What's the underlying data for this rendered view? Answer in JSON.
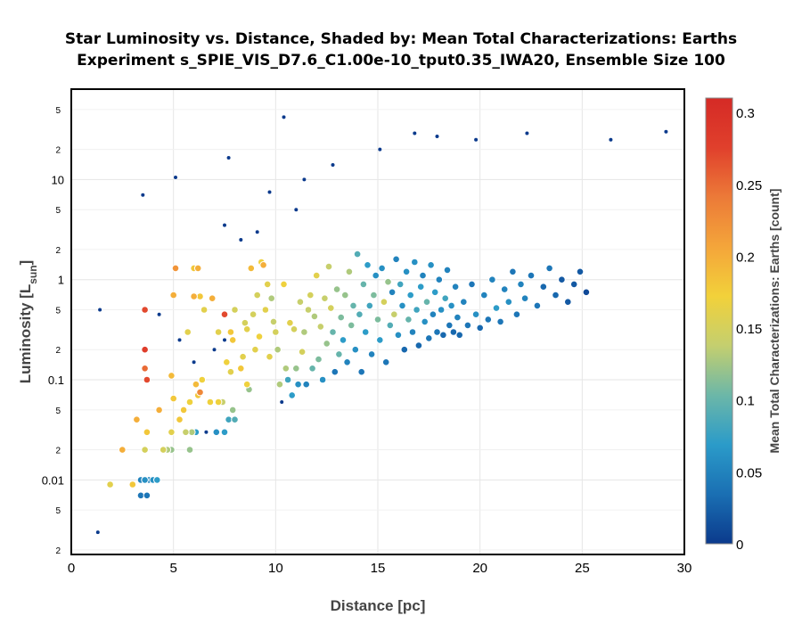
{
  "chart_data": {
    "type": "scatter",
    "title_line1": "Star Luminosity vs. Distance, Shaded by: Mean Total Characterizations: Earths",
    "title_line2": "Experiment s_SPIE_VIS_D7.6_C1.00e-10_tput0.35_IWA20, Ensemble Size 100",
    "xlabel": "Distance [pc]",
    "ylabel_main": "Luminosity [L",
    "ylabel_sub": "sun",
    "ylabel_end": "]",
    "colorbar_label": "Mean Total Characterizations: Earths [count]",
    "xlim": [
      0,
      30
    ],
    "ylim": [
      0.0018,
      80
    ],
    "yscale": "log",
    "x_ticks": [
      "0",
      "5",
      "10",
      "15",
      "20",
      "25",
      "30"
    ],
    "y_major_ticks": [
      "0.01",
      "0.1",
      "1",
      "10"
    ],
    "y_minor_ticks": [
      "2",
      "5",
      "2",
      "5",
      "2",
      "5",
      "2",
      "5",
      "2",
      "5"
    ],
    "colorbar_range": [
      0,
      0.31
    ],
    "colorbar_ticks": [
      "0",
      "0.05",
      "0.1",
      "0.15",
      "0.2",
      "0.25",
      "0.3"
    ],
    "colormap": [
      "#0b3a8c",
      "#1a6fb3",
      "#2b9bc9",
      "#6cb7a8",
      "#c4cf6f",
      "#f2d13a",
      "#f4a53a",
      "#ec7a38",
      "#e0402c",
      "#d52a26"
    ],
    "grid": true,
    "points": [
      [
        1.3,
        0.003,
        0.0
      ],
      [
        1.4,
        0.5,
        0.0
      ],
      [
        1.9,
        0.009,
        0.16
      ],
      [
        2.5,
        0.02,
        0.2
      ],
      [
        3.0,
        0.009,
        0.18
      ],
      [
        3.2,
        0.04,
        0.2
      ],
      [
        3.4,
        0.01,
        0.05
      ],
      [
        3.6,
        0.01,
        0.06
      ],
      [
        3.8,
        0.01,
        0.05
      ],
      [
        4.0,
        0.01,
        0.06
      ],
      [
        4.2,
        0.01,
        0.07
      ],
      [
        3.4,
        0.007,
        0.04
      ],
      [
        3.7,
        0.007,
        0.04
      ],
      [
        3.5,
        7.0,
        0.0
      ],
      [
        3.6,
        0.5,
        0.27
      ],
      [
        3.6,
        0.13,
        0.25
      ],
      [
        3.7,
        0.1,
        0.27
      ],
      [
        3.6,
        0.2,
        0.28
      ],
      [
        3.7,
        0.03,
        0.18
      ],
      [
        3.6,
        0.02,
        0.15
      ],
      [
        4.3,
        0.45,
        0.0
      ],
      [
        4.3,
        0.05,
        0.2
      ],
      [
        4.5,
        0.02,
        0.12
      ],
      [
        4.7,
        0.02,
        0.13
      ],
      [
        4.9,
        0.02,
        0.12
      ],
      [
        4.5,
        0.02,
        0.15
      ],
      [
        4.9,
        0.03,
        0.16
      ],
      [
        4.9,
        0.11,
        0.19
      ],
      [
        5.0,
        0.7,
        0.2
      ],
      [
        5.0,
        0.065,
        0.18
      ],
      [
        5.1,
        1.3,
        0.22
      ],
      [
        5.1,
        10.5,
        0.0
      ],
      [
        5.3,
        0.04,
        0.18
      ],
      [
        5.3,
        0.25,
        0.0
      ],
      [
        5.5,
        0.05,
        0.18
      ],
      [
        5.6,
        0.03,
        0.14
      ],
      [
        5.7,
        0.3,
        0.16
      ],
      [
        5.8,
        0.02,
        0.12
      ],
      [
        5.8,
        0.06,
        0.17
      ],
      [
        5.9,
        0.03,
        0.13
      ],
      [
        6.0,
        1.3,
        0.18
      ],
      [
        6.0,
        0.68,
        0.2
      ],
      [
        6.1,
        0.09,
        0.19
      ],
      [
        6.0,
        0.15,
        0.0
      ],
      [
        6.1,
        0.03,
        0.07
      ],
      [
        6.2,
        0.07,
        0.18
      ],
      [
        6.2,
        1.3,
        0.2
      ],
      [
        6.3,
        0.68,
        0.18
      ],
      [
        6.3,
        0.075,
        0.23
      ],
      [
        6.4,
        0.1,
        0.17
      ],
      [
        6.5,
        0.5,
        0.16
      ],
      [
        6.6,
        0.03,
        0.0
      ],
      [
        6.8,
        0.06,
        0.17
      ],
      [
        6.9,
        0.65,
        0.2
      ],
      [
        7.0,
        0.2,
        0.0
      ],
      [
        7.1,
        0.03,
        0.06
      ],
      [
        7.2,
        0.3,
        0.16
      ],
      [
        7.2,
        0.06,
        0.17
      ],
      [
        7.4,
        0.06,
        0.14
      ],
      [
        7.5,
        0.45,
        0.27
      ],
      [
        7.5,
        0.03,
        0.07
      ],
      [
        7.6,
        0.15,
        0.17
      ],
      [
        7.5,
        0.25,
        0.0
      ],
      [
        7.7,
        0.04,
        0.08
      ],
      [
        7.7,
        16.5,
        0.0
      ],
      [
        7.8,
        0.12,
        0.16
      ],
      [
        7.9,
        0.05,
        0.12
      ],
      [
        7.8,
        0.3,
        0.18
      ],
      [
        7.9,
        0.25,
        0.18
      ],
      [
        8.0,
        0.04,
        0.09
      ],
      [
        8.0,
        0.5,
        0.15
      ],
      [
        8.3,
        0.13,
        0.18
      ],
      [
        8.4,
        0.17,
        0.16
      ],
      [
        8.5,
        0.37,
        0.15
      ],
      [
        8.6,
        0.09,
        0.17
      ],
      [
        8.6,
        0.32,
        0.16
      ],
      [
        8.7,
        0.08,
        0.12
      ],
      [
        8.8,
        1.3,
        0.19
      ],
      [
        8.9,
        0.45,
        0.15
      ],
      [
        9.0,
        0.2,
        0.16
      ],
      [
        9.1,
        3.0,
        0.0
      ],
      [
        9.1,
        0.7,
        0.15
      ],
      [
        9.2,
        0.27,
        0.17
      ],
      [
        9.3,
        1.5,
        0.17
      ],
      [
        9.4,
        1.4,
        0.2
      ],
      [
        9.5,
        0.5,
        0.16
      ],
      [
        9.6,
        0.9,
        0.16
      ],
      [
        9.7,
        0.17,
        0.16
      ],
      [
        9.8,
        0.65,
        0.13
      ],
      [
        9.9,
        0.38,
        0.14
      ],
      [
        10.0,
        0.3,
        0.15
      ],
      [
        10.1,
        0.2,
        0.13
      ],
      [
        10.2,
        0.09,
        0.13
      ],
      [
        10.3,
        0.06,
        0.0
      ],
      [
        10.4,
        0.9,
        0.17
      ],
      [
        10.5,
        0.13,
        0.13
      ],
      [
        10.6,
        0.1,
        0.08
      ],
      [
        10.7,
        0.37,
        0.16
      ],
      [
        10.8,
        0.07,
        0.07
      ],
      [
        10.9,
        0.32,
        0.15
      ],
      [
        11.0,
        0.13,
        0.12
      ],
      [
        11.1,
        0.09,
        0.06
      ],
      [
        11.2,
        0.6,
        0.14
      ],
      [
        11.3,
        0.19,
        0.15
      ],
      [
        11.4,
        0.3,
        0.13
      ],
      [
        11.5,
        0.09,
        0.05
      ],
      [
        11.6,
        0.5,
        0.14
      ],
      [
        11.7,
        0.7,
        0.15
      ],
      [
        11.8,
        0.13,
        0.1
      ],
      [
        11.9,
        0.43,
        0.13
      ],
      [
        12.0,
        1.1,
        0.16
      ],
      [
        12.1,
        0.16,
        0.11
      ],
      [
        12.2,
        0.34,
        0.14
      ],
      [
        12.3,
        0.1,
        0.06
      ],
      [
        12.4,
        0.65,
        0.14
      ],
      [
        12.5,
        0.23,
        0.12
      ],
      [
        12.6,
        1.35,
        0.14
      ],
      [
        12.7,
        0.52,
        0.15
      ],
      [
        12.8,
        0.3,
        0.1
      ],
      [
        12.9,
        0.12,
        0.04
      ],
      [
        13.0,
        0.8,
        0.12
      ],
      [
        13.1,
        0.18,
        0.1
      ],
      [
        13.2,
        0.42,
        0.11
      ],
      [
        13.3,
        0.25,
        0.07
      ],
      [
        13.4,
        0.7,
        0.12
      ],
      [
        13.5,
        0.15,
        0.05
      ],
      [
        13.6,
        1.2,
        0.13
      ],
      [
        13.7,
        0.35,
        0.11
      ],
      [
        13.8,
        0.55,
        0.1
      ],
      [
        13.9,
        0.2,
        0.06
      ],
      [
        14.0,
        1.8,
        0.09
      ],
      [
        14.1,
        0.45,
        0.09
      ],
      [
        14.2,
        0.12,
        0.04
      ],
      [
        14.3,
        0.9,
        0.1
      ],
      [
        14.4,
        0.3,
        0.07
      ],
      [
        14.5,
        1.4,
        0.07
      ],
      [
        14.6,
        0.55,
        0.08
      ],
      [
        14.7,
        0.18,
        0.05
      ],
      [
        14.8,
        0.7,
        0.11
      ],
      [
        14.9,
        1.1,
        0.06
      ],
      [
        15.0,
        0.4,
        0.11
      ],
      [
        15.1,
        0.25,
        0.07
      ],
      [
        15.2,
        1.3,
        0.06
      ],
      [
        15.3,
        0.6,
        0.15
      ],
      [
        15.4,
        0.15,
        0.04
      ],
      [
        15.5,
        0.95,
        0.12
      ],
      [
        15.6,
        0.35,
        0.09
      ],
      [
        15.7,
        0.75,
        0.05
      ],
      [
        15.8,
        0.45,
        0.14
      ],
      [
        15.9,
        1.6,
        0.05
      ],
      [
        16.0,
        0.28,
        0.06
      ],
      [
        16.1,
        0.9,
        0.08
      ],
      [
        16.2,
        0.55,
        0.06
      ],
      [
        16.3,
        0.2,
        0.03
      ],
      [
        16.4,
        1.2,
        0.06
      ],
      [
        16.5,
        0.4,
        0.1
      ],
      [
        16.6,
        0.7,
        0.07
      ],
      [
        16.7,
        0.3,
        0.05
      ],
      [
        16.8,
        1.5,
        0.06
      ],
      [
        16.9,
        0.5,
        0.08
      ],
      [
        17.0,
        0.22,
        0.03
      ],
      [
        17.1,
        0.85,
        0.07
      ],
      [
        17.2,
        1.1,
        0.05
      ],
      [
        17.3,
        0.38,
        0.06
      ],
      [
        17.4,
        0.6,
        0.1
      ],
      [
        17.5,
        0.26,
        0.04
      ],
      [
        17.6,
        1.4,
        0.06
      ],
      [
        17.7,
        0.45,
        0.05
      ],
      [
        17.8,
        0.75,
        0.07
      ],
      [
        17.9,
        0.3,
        0.04
      ],
      [
        18.0,
        1.0,
        0.05
      ],
      [
        18.1,
        0.5,
        0.06
      ],
      [
        18.2,
        0.28,
        0.03
      ],
      [
        18.3,
        0.65,
        0.08
      ],
      [
        18.4,
        1.25,
        0.05
      ],
      [
        18.5,
        0.35,
        0.04
      ],
      [
        18.6,
        0.55,
        0.06
      ],
      [
        18.7,
        0.3,
        0.03
      ],
      [
        18.8,
        0.85,
        0.05
      ],
      [
        18.9,
        0.42,
        0.05
      ],
      [
        19.0,
        0.28,
        0.03
      ],
      [
        19.2,
        0.6,
        0.05
      ],
      [
        19.4,
        0.35,
        0.04
      ],
      [
        19.6,
        0.9,
        0.04
      ],
      [
        19.8,
        0.45,
        0.06
      ],
      [
        20.0,
        0.33,
        0.03
      ],
      [
        20.2,
        0.7,
        0.05
      ],
      [
        20.4,
        0.4,
        0.04
      ],
      [
        20.6,
        1.0,
        0.05
      ],
      [
        20.8,
        0.52,
        0.07
      ],
      [
        21.0,
        0.38,
        0.04
      ],
      [
        21.2,
        0.8,
        0.05
      ],
      [
        21.4,
        0.6,
        0.06
      ],
      [
        21.6,
        1.2,
        0.04
      ],
      [
        21.8,
        0.45,
        0.04
      ],
      [
        22.0,
        0.9,
        0.05
      ],
      [
        22.2,
        0.65,
        0.05
      ],
      [
        22.5,
        1.1,
        0.04
      ],
      [
        22.8,
        0.55,
        0.04
      ],
      [
        23.1,
        0.85,
        0.03
      ],
      [
        23.4,
        1.3,
        0.04
      ],
      [
        23.7,
        0.7,
        0.03
      ],
      [
        24.0,
        1.0,
        0.02
      ],
      [
        24.3,
        0.6,
        0.02
      ],
      [
        24.6,
        0.9,
        0.02
      ],
      [
        24.9,
        1.2,
        0.02
      ],
      [
        25.2,
        0.75,
        0.01
      ],
      [
        10.4,
        42.0,
        0.0
      ],
      [
        16.8,
        29.0,
        0.0
      ],
      [
        17.9,
        27.0,
        0.0
      ],
      [
        19.8,
        25.0,
        0.0
      ],
      [
        22.3,
        29.0,
        0.0
      ],
      [
        26.4,
        25.0,
        0.0
      ],
      [
        29.1,
        30.0,
        0.0
      ],
      [
        15.1,
        20.0,
        0.0
      ],
      [
        12.8,
        14.0,
        0.0
      ],
      [
        11.4,
        10.0,
        0.0
      ],
      [
        9.7,
        7.5,
        0.0
      ],
      [
        11.0,
        5.0,
        0.0
      ],
      [
        7.5,
        3.5,
        0.0
      ],
      [
        8.3,
        2.5,
        0.0
      ]
    ]
  }
}
